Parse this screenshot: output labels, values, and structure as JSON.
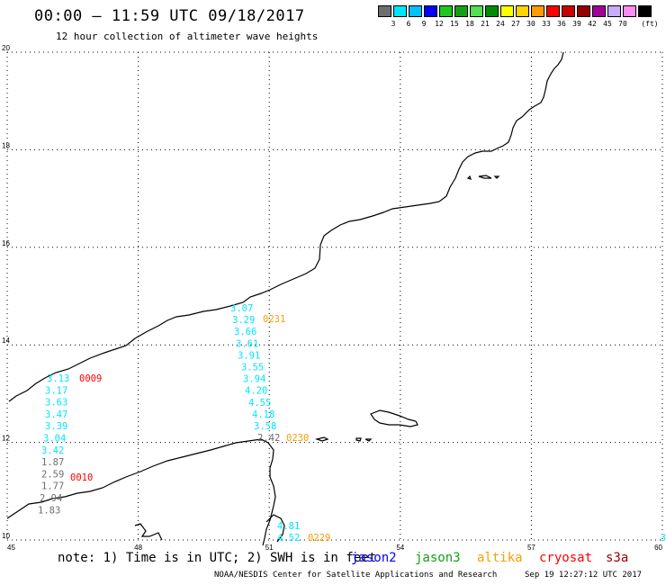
{
  "header": {
    "title": "00:00 – 11:59 UTC 09/18/2017",
    "subtitle": "12 hour collection of altimeter wave heights"
  },
  "legend": {
    "unit": "(ft)",
    "items": [
      {
        "label": "",
        "color": "#6e6e6e"
      },
      {
        "label": "3",
        "color": "#00e5ff"
      },
      {
        "label": "6",
        "color": "#00c0ff"
      },
      {
        "label": "9",
        "color": "#0000ff"
      },
      {
        "label": "12",
        "color": "#1ec81e"
      },
      {
        "label": "15",
        "color": "#14a014"
      },
      {
        "label": "18",
        "color": "#50e050"
      },
      {
        "label": "21",
        "color": "#008c00"
      },
      {
        "label": "24",
        "color": "#ffff00"
      },
      {
        "label": "27",
        "color": "#ffd200"
      },
      {
        "label": "30",
        "color": "#ff9b00"
      },
      {
        "label": "33",
        "color": "#ff0000"
      },
      {
        "label": "36",
        "color": "#c80000"
      },
      {
        "label": "39",
        "color": "#960000"
      },
      {
        "label": "42",
        "color": "#a0009b"
      },
      {
        "label": "45",
        "color": "#c8aaff"
      },
      {
        "label": "70",
        "color": "#ff8cf0"
      },
      {
        "label": "",
        "color": "#000000"
      }
    ]
  },
  "axes": {
    "x_ticks": [
      "45",
      "48",
      "51",
      "54",
      "57",
      "60"
    ],
    "y_ticks": [
      "10",
      "12",
      "14",
      "16",
      "18",
      "20"
    ]
  },
  "tracks": [
    {
      "time": "0231",
      "color": "#ff9b00",
      "values": [
        "3.07",
        "3.29",
        "3.66",
        "3.61",
        "3.91",
        "3.55",
        "3.94",
        "4.20",
        "4.55",
        "4.18",
        "3.58",
        "2.42"
      ],
      "colors": [
        "#00e5ff",
        "#00e5ff",
        "#00e5ff",
        "#00e5ff",
        "#00e5ff",
        "#00e5ff",
        "#00e5ff",
        "#00e5ff",
        "#00e5ff",
        "#00e5ff",
        "#00e5ff",
        "#6e6e6e"
      ]
    },
    {
      "time": "0230",
      "color": "#ff9b00"
    },
    {
      "time": "0229",
      "color": "#ff9b00",
      "values": [
        "4.81",
        "4.52"
      ],
      "colors": [
        "#00e5ff",
        "#00e5ff"
      ]
    },
    {
      "time": "0009",
      "color": "#ff0000",
      "values": [
        "3.13",
        "3.17",
        "3.63",
        "3.47",
        "3.39",
        "3.04",
        "3.42",
        "1.87",
        "2.59",
        "1.77",
        "2.94",
        "1.83"
      ],
      "colors": [
        "#00e5ff",
        "#00e5ff",
        "#00e5ff",
        "#00e5ff",
        "#00e5ff",
        "#00e5ff",
        "#00e5ff",
        "#6e6e6e",
        "#6e6e6e",
        "#6e6e6e",
        "#6e6e6e",
        "#6e6e6e"
      ]
    },
    {
      "time": "0010",
      "color": "#ff0000"
    }
  ],
  "edge_fragment": "3",
  "footer": {
    "note": "note: 1) Time is in UTC; 2) SWH is in feet",
    "missions": [
      {
        "label": "jason2",
        "color": "#0000ff"
      },
      {
        "label": "jason3",
        "color": "#14a014"
      },
      {
        "label": "altika",
        "color": "#ff9b00"
      },
      {
        "label": "cryosat",
        "color": "#ff0000"
      },
      {
        "label": "s3a",
        "color": "#a00000"
      }
    ],
    "credit": "NOAA/NESDIS Center for Satellite Applications and Research",
    "timestamp": "Sep 19 12:27:12 UTC 2017"
  }
}
